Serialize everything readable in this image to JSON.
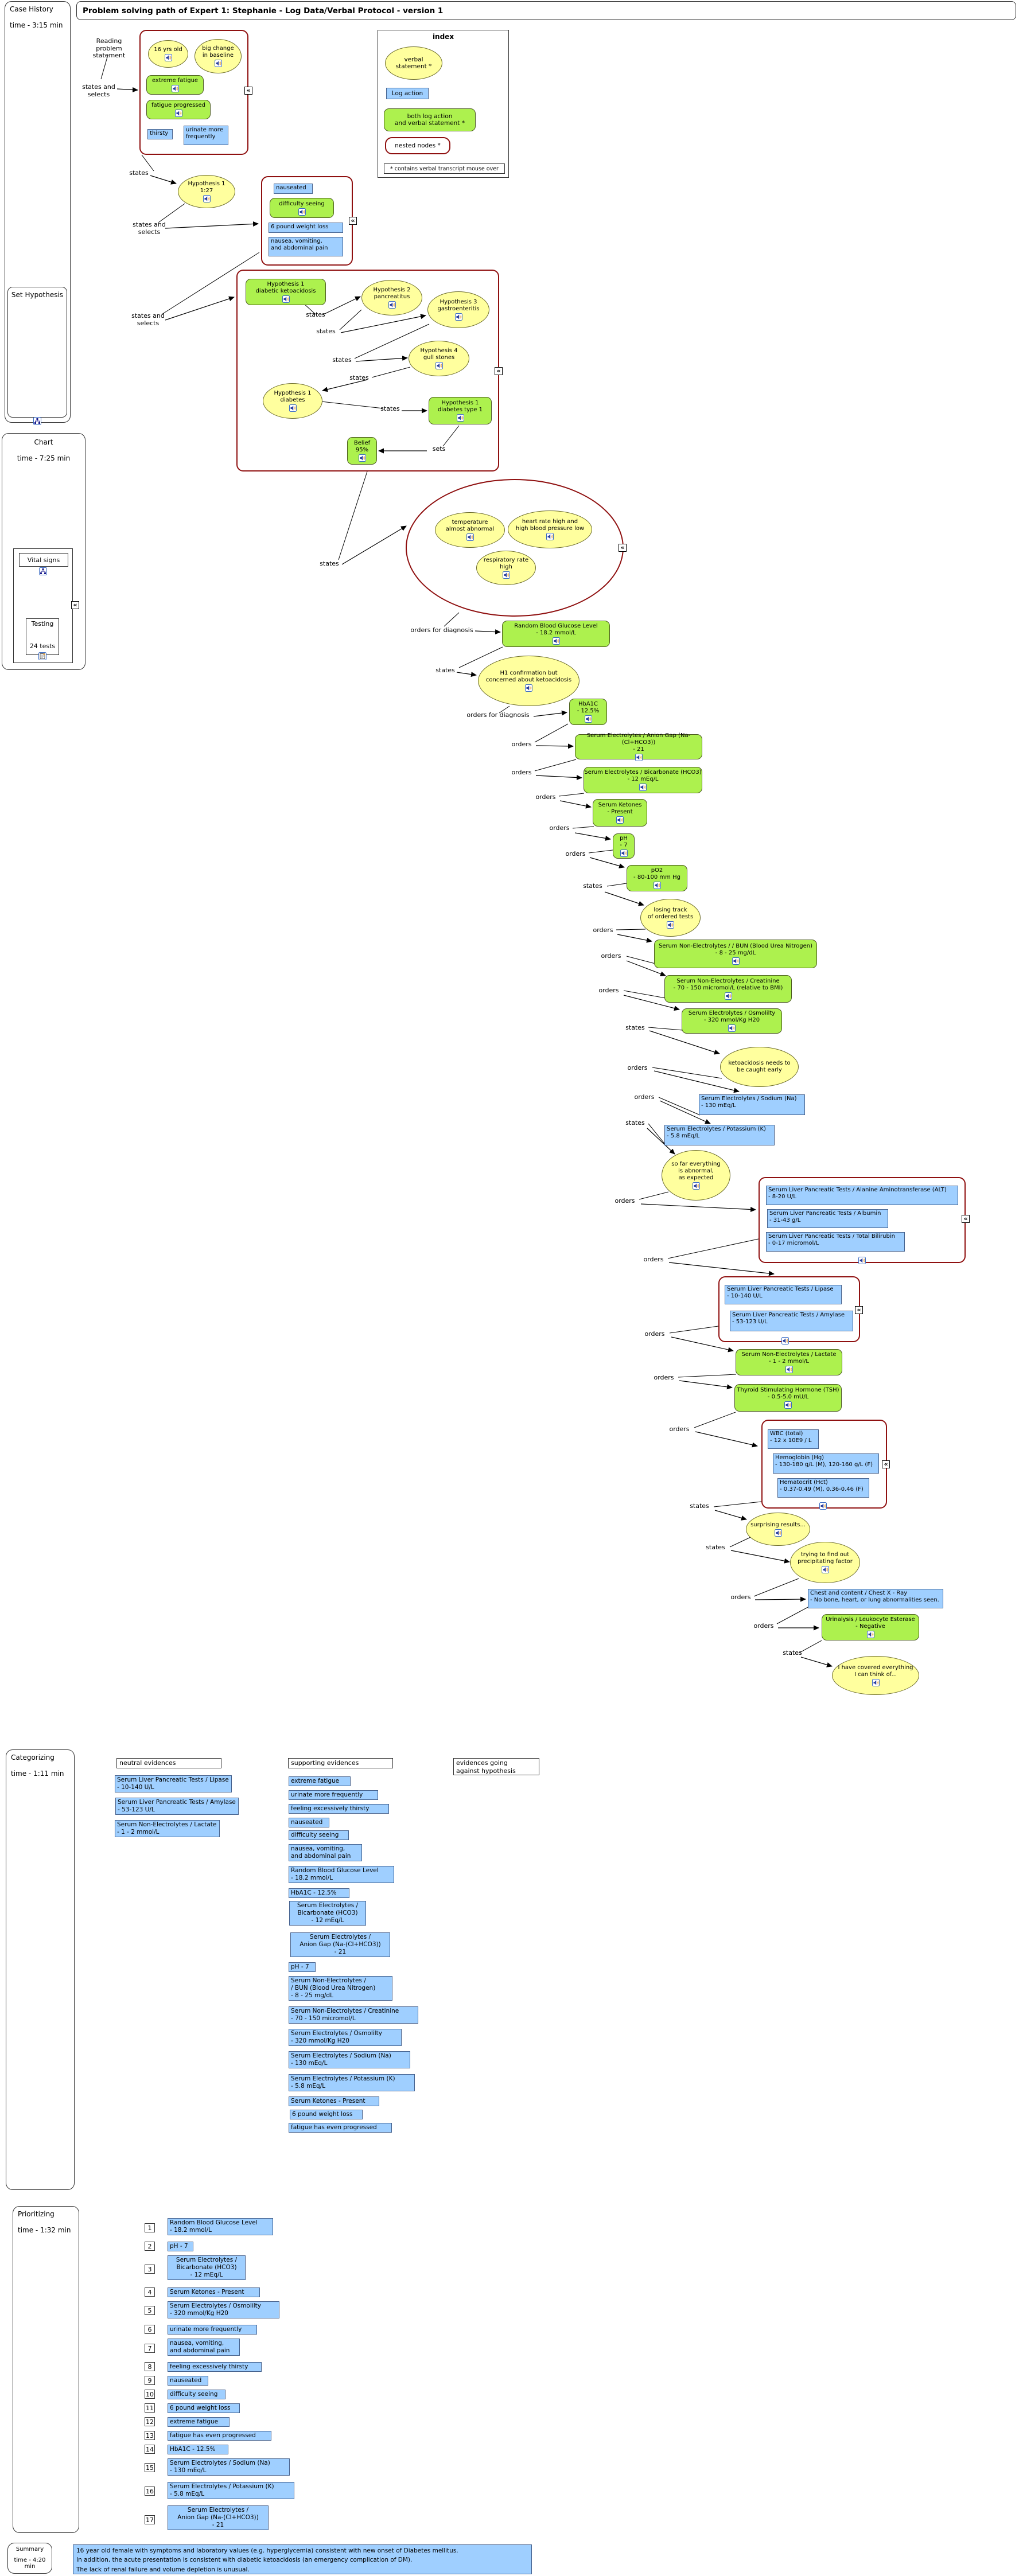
{
  "title": "Problem solving path of Expert 1: Stephanie -  Log Data/Verbal Protocol - version 1",
  "icons": {
    "collapse": "«"
  },
  "sidebar": {
    "case_history": {
      "label": "Case History",
      "time": "time  - 3:15 min"
    },
    "set_hypothesis": {
      "label": "Set Hypothesis"
    },
    "chart": {
      "label": "Chart",
      "time": "time - 7:25 min",
      "vital_signs": "Vital signs",
      "testing": "Testing",
      "tests_count": "24 tests"
    },
    "categorizing": {
      "label": "Categorizing",
      "time": "time - 1:11 min"
    },
    "prioritizing": {
      "label": "Prioritizing",
      "time": "time - 1:32 min"
    },
    "summary": {
      "label": "Summary",
      "time": "time - 4:20 min"
    }
  },
  "index": {
    "title": "index",
    "verbal": "verbal\nstatement *",
    "log": "Log action",
    "both": "both log action\nand verbal statement *",
    "nested": "nested nodes *",
    "note": "* contains verbal transcript mouse over"
  },
  "labels": {
    "states": "states",
    "orders": "orders",
    "orders_for_diagnosis": "orders for diagnosis",
    "sets": "sets",
    "states_and_selects": "states and\nselects",
    "reading": "Reading\nproblem statement"
  },
  "nodes": {
    "n16yrs": "16 yrs old",
    "bigchange": "big change\nin baseline",
    "extreme_fatigue": "extreme fatigue",
    "fatigue_progressed": "fatigue progressed",
    "thirsty": "thirsty",
    "urinate": "urinate more\nfrequently",
    "hyp1_127": "Hypothesis 1\n1:27",
    "nauseated": "nauseated",
    "difficulty_seeing": "difficulty seeing",
    "weight_loss": "6 pound weight loss",
    "nausea_vomiting": "nausea, vomiting,\nand abdominal pain",
    "hyp1_dka": "Hypothesis 1\ndiabetic ketoacidosis",
    "hyp2": "Hypothesis 2\npancreatitus",
    "hyp3": "Hypothesis 3\ngastroenteritis",
    "hyp4": "Hypothesis 4\ngull stones",
    "hyp1_diabetes": "Hypothesis 1\ndiabetes",
    "hyp1_dt1": "Hypothesis 1\ndiabetes type 1",
    "belief": "Belief\n95%",
    "temp": "temperature\nalmost abnormal",
    "heart": "heart rate high and\nhigh blood pressure low",
    "resp": "respiratory rate\nhigh",
    "rbg": "Random Blood Glucose Level\n- 18.2 mmol/L",
    "h1conf": "H1 confirmation but\nconcerned about ketoacidosis",
    "hba1c": "HbA1C\n- 12.5%",
    "anion": "Serum Electrolytes / Anion Gap (Na-(Cl+HCO3))\n- 21",
    "bicarb": "Serum Electrolytes / Bicarbonate (HCO3)\n- 12 mEq/L",
    "ketones": "Serum Ketones\n- Present",
    "ph": "pH\n- 7",
    "po2": "pO2\n- 80-100 mm Hg",
    "losing": "losing track\nof ordered tests",
    "bun": "Serum Non-Electrolytes / / BUN (Blood Urea Nitrogen)\n- 8 - 25 mg/dL",
    "creatinine": "Serum Non-Electrolytes / Creatinine\n- 70 - 150 micromol/L (relative to BMI)",
    "osmolality": "Serum Electrolytes / Osmolilty\n- 320 mmol/Kg H20",
    "keto_early": "ketoacidosis needs to\nbe caught early",
    "sodium": "Serum Electrolytes / Sodium (Na)\n- 130 mEq/L",
    "potassium": "Serum Electrolytes / Potassium (K)\n- 5.8 mEq/L",
    "so_far": "so far everything\nis abnormal,\nas expected",
    "alt": "Serum Liver Pancreatic Tests / Alanine Aminotransferase (ALT)\n- 8-20 U/L",
    "albumin": "Serum Liver Pancreatic Tests / Albumin\n- 31-43 g/L",
    "bilirubin": "Serum Liver Pancreatic Tests / Total Bilirubin\n- 0-17 micromol/L",
    "lipase": "Serum Liver Pancreatic Tests / Lipase\n- 10-140 U/L",
    "amylase": "Serum Liver Pancreatic Tests / Amylase\n- 53-123 U/L",
    "lactate": "Serum Non-Electrolytes / Lactate\n- 1 - 2 mmol/L",
    "tsh": "Thyroid Stimulating Hormone (TSH)\n- 0.5-5.0 mU/L",
    "wbc": "WBC (total)\n- 12 x 10E9 / L",
    "hemoglobin": "Hemoglobin (Hg)\n- 130-180 g/L (M), 120-160 g/L (F)",
    "hematocrit": "Hematocrit (Hct)\n- 0.37-0.49 (M), 0.36-0.46 (F)",
    "surprising": "surprising results...",
    "trying": "trying to find out\nprecipitating factor",
    "chest": "Chest and content / Chest X - Ray\n- No bone, heart, or lung abnormalities seen.",
    "urinalysis": "Urinalysis / Leukocyte Esterase\n- Negative",
    "covered": "I have covered everything\nI can think of..."
  },
  "categorizing": {
    "neutral_header": "neutral evidences",
    "supporting_header": "supporting evidences",
    "against_header": "evidences going\nagainst hypothesis",
    "neutral": [
      "Serum Liver Pancreatic Tests / Lipase\n- 10-140 U/L",
      "Serum Liver Pancreatic Tests / Amylase\n- 53-123 U/L",
      "Serum Non-Electrolytes / Lactate\n- 1 - 2 mmol/L"
    ],
    "supporting": [
      "extreme fatigue",
      "urinate more frequently",
      "feeling excessively thirsty",
      "nauseated",
      "difficulty seeing",
      "nausea, vomiting,\nand abdominal pain",
      "Random Blood Glucose Level\n- 18.2 mmol/L",
      "HbA1C - 12.5%",
      "Serum Electrolytes /\nBicarbonate (HCO3)\n- 12 mEq/L",
      "Serum Electrolytes /\nAnion Gap (Na-(Cl+HCO3))\n- 21",
      "pH - 7",
      "Serum Non-Electrolytes /\n/ BUN (Blood Urea Nitrogen)\n- 8 - 25 mg/dL",
      "Serum Non-Electrolytes / Creatinine\n- 70 - 150 micromol/L",
      "Serum Electrolytes / Osmolilty\n- 320 mmol/Kg H20",
      "Serum Electrolytes / Sodium (Na)\n- 130 mEq/L",
      "Serum Electrolytes / Potassium (K)\n- 5.8 mEq/L",
      "Serum Ketones - Present",
      "6 pound weight loss",
      "fatigue has even progressed"
    ]
  },
  "prioritizing": {
    "items": [
      {
        "n": "1",
        "t": "Random Blood Glucose Level\n- 18.2 mmol/L"
      },
      {
        "n": "2",
        "t": "pH - 7"
      },
      {
        "n": "3",
        "t": "Serum Electrolytes /\nBicarbonate (HCO3)\n- 12 mEq/L"
      },
      {
        "n": "4",
        "t": "Serum Ketones - Present"
      },
      {
        "n": "5",
        "t": "Serum Electrolytes / Osmolilty\n- 320 mmol/Kg H20"
      },
      {
        "n": "6",
        "t": "urinate more frequently"
      },
      {
        "n": "7",
        "t": "nausea, vomiting,\nand abdominal pain"
      },
      {
        "n": "8",
        "t": "feeling excessively thirsty"
      },
      {
        "n": "9",
        "t": "nauseated"
      },
      {
        "n": "10",
        "t": "difficulty seeing"
      },
      {
        "n": "11",
        "t": "6 pound weight loss"
      },
      {
        "n": "12",
        "t": "extreme fatigue"
      },
      {
        "n": "13",
        "t": "fatigue has even progressed"
      },
      {
        "n": "14",
        "t": "HbA1C - 12.5%"
      },
      {
        "n": "15",
        "t": "Serum Electrolytes / Sodium (Na)\n- 130 mEq/L"
      },
      {
        "n": "16",
        "t": "Serum Electrolytes / Potassium (K)\n- 5.8 mEq/L"
      },
      {
        "n": "17",
        "t": "Serum Electrolytes /\nAnion Gap (Na-(Cl+HCO3))\n- 21"
      }
    ]
  },
  "summary_text": "16 year old female with symptoms and laboratory values (e.g. hyperglycemia) consistent with new onset of Diabetes mellitus.\nIn addition, the acute presentation is consistent with diabetic ketoacidosis (an emergency complication of DM).\nThe lack of renal failure and volume depletion is unusual."
}
